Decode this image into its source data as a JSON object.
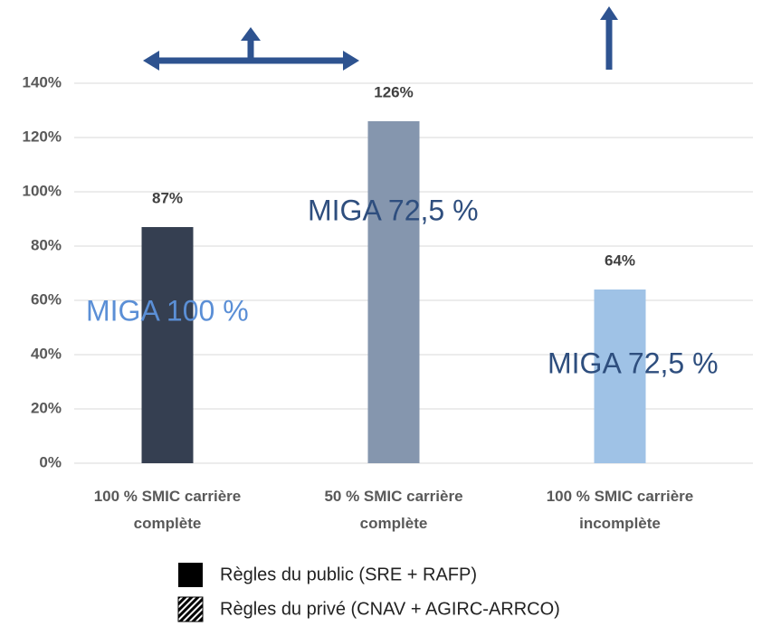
{
  "chart_data": {
    "type": "bar",
    "categories": [
      "100 % SMIC carrière complète",
      "50 % SMIC carrière complète",
      "100 % SMIC carrière incomplète"
    ],
    "values": [
      87,
      126,
      64
    ],
    "value_labels": [
      "87%",
      "126%",
      "64%"
    ],
    "colors": [
      "#353f51",
      "#8596ae",
      "#9fc2e6"
    ],
    "ylim": [
      0,
      140
    ],
    "yticks": [
      {
        "value": 0,
        "label": "0%"
      },
      {
        "value": 20,
        "label": "20%"
      },
      {
        "value": 40,
        "label": "40%"
      },
      {
        "value": 60,
        "label": "60%"
      },
      {
        "value": 80,
        "label": "80%"
      },
      {
        "value": 100,
        "label": "100%"
      },
      {
        "value": 120,
        "label": "120%"
      },
      {
        "value": 140,
        "label": "140%"
      }
    ],
    "grid": true,
    "annotations": [
      "MIGA 100 %",
      "MIGA 72,5 %",
      "MIGA 72,5 %"
    ],
    "legend": [
      "Règles du public (SRE + RAFP)",
      "Règles du privé (CNAV + AGIRC-ARRCO)"
    ]
  }
}
